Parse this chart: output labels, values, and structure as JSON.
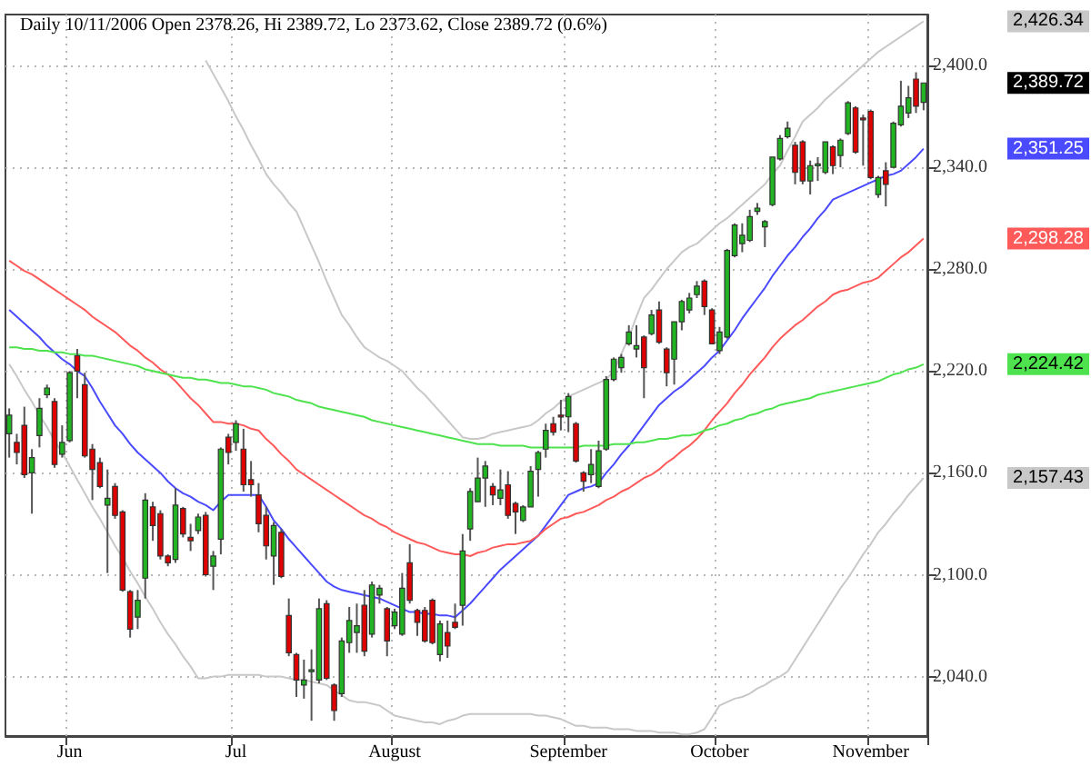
{
  "chart_data": {
    "type": "candlestick",
    "title": "Daily 10/11/2006 Open 2378.26, Hi 2389.72, Lo 2373.62, Close 2389.72 (0.6%)",
    "categories": [
      null,
      null,
      null,
      null,
      null,
      null,
      null,
      null,
      "Jun",
      null,
      null,
      null,
      null,
      null,
      null,
      null,
      null,
      null,
      null,
      null,
      null,
      null,
      null,
      null,
      null,
      null,
      null,
      null,
      null,
      null,
      "Jul",
      null,
      null,
      null,
      null,
      null,
      null,
      null,
      null,
      null,
      null,
      null,
      null,
      null,
      null,
      null,
      null,
      null,
      null,
      null,
      null,
      "August",
      null,
      null,
      null,
      null,
      null,
      null,
      null,
      null,
      null,
      null,
      null,
      null,
      null,
      null,
      null,
      null,
      null,
      null,
      null,
      null,
      null,
      null,
      "September",
      null,
      null,
      null,
      null,
      null,
      null,
      null,
      null,
      null,
      null,
      null,
      null,
      null,
      null,
      null,
      null,
      null,
      null,
      null,
      "October",
      null,
      null,
      null,
      null,
      null,
      null,
      null,
      null,
      null,
      null,
      null,
      null,
      null,
      null,
      null,
      null,
      null,
      null,
      null,
      "November",
      null,
      null,
      null,
      null,
      null,
      null,
      null
    ],
    "ohlc": [
      [
        2183,
        2198,
        2169,
        2194
      ],
      [
        2178,
        2183,
        2165,
        2172
      ],
      [
        2188,
        2199,
        2157,
        2159
      ],
      [
        2160,
        2174,
        2136,
        2169
      ],
      [
        2182,
        2204,
        2175,
        2198
      ],
      [
        2206,
        2212,
        2204,
        2210
      ],
      [
        2202,
        2204,
        2163,
        2165
      ],
      [
        2171,
        2188,
        2169,
        2178
      ],
      [
        2179,
        2220,
        2178,
        2219
      ],
      [
        2229,
        2233,
        2204,
        2220
      ],
      [
        2212,
        2219,
        2169,
        2170
      ],
      [
        2174,
        2177,
        2144,
        2162
      ],
      [
        2166,
        2169,
        2151,
        2152
      ],
      [
        2141,
        2162,
        2101,
        2145
      ],
      [
        2152,
        2154,
        2133,
        2135
      ],
      [
        2137,
        2138,
        2090,
        2091
      ],
      [
        2090,
        2091,
        2063,
        2068
      ],
      [
        2075,
        2091,
        2068,
        2085
      ],
      [
        2098,
        2148,
        2086,
        2144
      ],
      [
        2140,
        2143,
        2120,
        2129
      ],
      [
        2136,
        2138,
        2109,
        2111
      ],
      [
        2111,
        2112,
        2105,
        2107
      ],
      [
        2109,
        2151,
        2107,
        2141
      ],
      [
        2139,
        2140,
        2122,
        2124
      ],
      [
        2122,
        2130,
        2114,
        2120
      ],
      [
        2126,
        2136,
        2124,
        2134
      ],
      [
        2135,
        2137,
        2099,
        2100
      ],
      [
        2105,
        2114,
        2091,
        2111
      ],
      [
        2121,
        2175,
        2112,
        2174
      ],
      [
        2181,
        2183,
        2165,
        2172
      ],
      [
        2178,
        2191,
        2173,
        2189
      ],
      [
        2174,
        2186,
        2149,
        2153
      ],
      [
        2156,
        2167,
        2146,
        2153
      ],
      [
        2147,
        2154,
        2125,
        2130
      ],
      [
        2135,
        2140,
        2109,
        2117
      ],
      [
        2111,
        2131,
        2094,
        2129
      ],
      [
        2125,
        2127,
        2098,
        2099
      ],
      [
        2076,
        2086,
        2052,
        2054
      ],
      [
        2053,
        2054,
        2028,
        2038
      ],
      [
        2035,
        2050,
        2027,
        2038
      ],
      [
        2043,
        2056,
        2014,
        2044
      ],
      [
        2038,
        2086,
        2036,
        2080
      ],
      [
        2083,
        2085,
        2038,
        2039
      ],
      [
        2035,
        2036,
        2014,
        2020
      ],
      [
        2030,
        2063,
        2028,
        2061
      ],
      [
        2060,
        2081,
        2054,
        2073
      ],
      [
        2066,
        2083,
        2054,
        2070
      ],
      [
        2082,
        2091,
        2052,
        2055
      ],
      [
        2065,
        2096,
        2063,
        2094
      ],
      [
        2088,
        2094,
        2083,
        2092
      ],
      [
        2080,
        2081,
        2052,
        2061
      ],
      [
        2070,
        2080,
        2068,
        2078
      ],
      [
        2065,
        2101,
        2064,
        2092
      ],
      [
        2107,
        2118,
        2083,
        2085
      ],
      [
        2079,
        2080,
        2064,
        2072
      ],
      [
        2079,
        2081,
        2060,
        2061
      ],
      [
        2085,
        2086,
        2059,
        2060
      ],
      [
        2053,
        2073,
        2049,
        2071
      ],
      [
        2066,
        2073,
        2051,
        2058
      ],
      [
        2072,
        2083,
        2068,
        2069
      ],
      [
        2082,
        2124,
        2070,
        2114
      ],
      [
        2127,
        2151,
        2120,
        2149
      ],
      [
        2143,
        2169,
        2143,
        2157
      ],
      [
        2157,
        2167,
        2140,
        2164
      ],
      [
        2152,
        2154,
        2141,
        2147
      ],
      [
        2145,
        2162,
        2141,
        2150
      ],
      [
        2153,
        2161,
        2133,
        2135
      ],
      [
        2142,
        2143,
        2124,
        2137
      ],
      [
        2132,
        2141,
        2131,
        2140
      ],
      [
        2140,
        2164,
        2140,
        2161
      ],
      [
        2162,
        2173,
        2146,
        2172
      ],
      [
        2174,
        2189,
        2169,
        2185
      ],
      [
        2189,
        2193,
        2182,
        2184
      ],
      [
        2194,
        2203,
        2185,
        2193
      ],
      [
        2193,
        2207,
        2184,
        2205
      ],
      [
        2189,
        2190,
        2166,
        2167
      ],
      [
        2160,
        2161,
        2149,
        2155
      ],
      [
        2159,
        2174,
        2154,
        2165
      ],
      [
        2152,
        2179,
        2151,
        2173
      ],
      [
        2174,
        2217,
        2173,
        2215
      ],
      [
        2215,
        2228,
        2214,
        2227
      ],
      [
        2222,
        2230,
        2219,
        2228
      ],
      [
        2236,
        2247,
        2235,
        2243
      ],
      [
        2233,
        2247,
        2228,
        2235
      ],
      [
        2240,
        2241,
        2204,
        2222
      ],
      [
        2242,
        2256,
        2241,
        2253
      ],
      [
        2256,
        2261,
        2236,
        2237
      ],
      [
        2233,
        2234,
        2211,
        2219
      ],
      [
        2227,
        2249,
        2212,
        2249
      ],
      [
        2249,
        2262,
        2244,
        2261
      ],
      [
        2256,
        2266,
        2254,
        2263
      ],
      [
        2265,
        2273,
        2263,
        2270
      ],
      [
        2273,
        2274,
        2253,
        2258
      ],
      [
        2256,
        2257,
        2236,
        2236
      ],
      [
        2232,
        2246,
        2230,
        2243
      ],
      [
        2240,
        2292,
        2239,
        2291
      ],
      [
        2288,
        2307,
        2287,
        2306
      ],
      [
        2295,
        2307,
        2290,
        2300
      ],
      [
        2297,
        2315,
        2296,
        2311
      ],
      [
        2314,
        2319,
        2312,
        2316
      ],
      [
        2305,
        2309,
        2293,
        2308
      ],
      [
        2318,
        2346,
        2317,
        2346
      ],
      [
        2345,
        2359,
        2344,
        2357
      ],
      [
        2358,
        2367,
        2357,
        2363
      ],
      [
        2353,
        2355,
        2330,
        2337
      ],
      [
        2355,
        2356,
        2330,
        2332
      ],
      [
        2332,
        2344,
        2324,
        2341
      ],
      [
        2341,
        2346,
        2332,
        2342
      ],
      [
        2337,
        2355,
        2336,
        2355
      ],
      [
        2352,
        2353,
        2336,
        2341
      ],
      [
        2347,
        2357,
        2340,
        2356
      ],
      [
        2360,
        2379,
        2359,
        2378
      ],
      [
        2375,
        2376,
        2348,
        2349
      ],
      [
        2369,
        2371,
        2341,
        2368
      ],
      [
        2373,
        2374,
        2333,
        2334
      ],
      [
        2324,
        2335,
        2322,
        2334
      ],
      [
        2338,
        2343,
        2317,
        2330
      ],
      [
        2340,
        2367,
        2340,
        2366
      ],
      [
        2365,
        2391,
        2364,
        2376
      ],
      [
        2372,
        2388,
        2369,
        2381
      ],
      [
        2392,
        2396,
        2372,
        2376
      ],
      [
        2378.26,
        2389.72,
        2373.62,
        2389.72
      ]
    ],
    "colors": [
      "#22b422",
      "#e00000",
      "#e00000",
      "#22b422",
      "#22b422",
      "#22b422",
      "#e00000",
      "#22b422",
      "#22b422",
      "#e00000",
      "#e00000",
      "#e00000",
      "#e00000",
      "#22b422",
      "#e00000",
      "#e00000",
      "#e00000",
      "#22b422",
      "#22b422",
      "#e00000",
      "#e00000",
      "#e00000",
      "#22b422",
      "#e00000",
      "#e00000",
      "#22b422",
      "#e00000",
      "#22b422",
      "#22b422",
      "#e00000",
      "#22b422",
      "#e00000",
      "#e00000",
      "#e00000",
      "#e00000",
      "#22b422",
      "#e00000",
      "#e00000",
      "#e00000",
      "#22b422",
      "#22b422",
      "#22b422",
      "#e00000",
      "#e00000",
      "#22b422",
      "#22b422",
      "#22b422",
      "#e00000",
      "#22b422",
      "#22b422",
      "#e00000",
      "#22b422",
      "#22b422",
      "#e00000",
      "#e00000",
      "#e00000",
      "#e00000",
      "#22b422",
      "#e00000",
      "#e00000",
      "#22b422",
      "#22b422",
      "#22b422",
      "#22b422",
      "#e00000",
      "#22b422",
      "#e00000",
      "#e00000",
      "#22b422",
      "#22b422",
      "#22b422",
      "#22b422",
      "#e00000",
      "#e00000",
      "#22b422",
      "#e00000",
      "#e00000",
      "#22b422",
      "#22b422",
      "#22b422",
      "#22b422",
      "#22b422",
      "#22b422",
      "#22b422",
      "#e00000",
      "#22b422",
      "#e00000",
      "#e00000",
      "#22b422",
      "#22b422",
      "#22b422",
      "#22b422",
      "#e00000",
      "#e00000",
      "#22b422",
      "#22b422",
      "#22b422",
      "#22b422",
      "#22b422",
      "#22b422",
      "#22b422",
      "#22b422",
      "#22b422",
      "#22b422",
      "#e00000",
      "#e00000",
      "#22b422",
      "#22b422",
      "#22b422",
      "#e00000",
      "#22b422",
      "#22b422",
      "#e00000",
      "#e00000",
      "#e00000",
      "#22b422",
      "#e00000",
      "#22b422",
      "#22b422",
      "#22b422",
      "#e00000",
      "#22b422"
    ],
    "series": [
      {
        "type": "line",
        "color": "#c8c8c8",
        "values": [
          null,
          null,
          null,
          null,
          null,
          null,
          null,
          null,
          null,
          null,
          null,
          null,
          null,
          null,
          null,
          null,
          null,
          null,
          null,
          null,
          null,
          null,
          null,
          null,
          null,
          null,
          2403,
          2395,
          2387,
          2379,
          2370,
          2362,
          2353,
          2345,
          2336,
          2330,
          2325,
          2319,
          2314,
          2304,
          2294,
          2284,
          2273,
          2263,
          2253,
          2247,
          2240,
          2234,
          2231,
          2228,
          2226,
          2223,
          2220,
          2215,
          2210,
          2206,
          2201,
          2196,
          2191,
          2186,
          2181,
          2180,
          2180,
          2181,
          2183,
          2184,
          2185,
          2186,
          2187,
          2188,
          2191,
          2195,
          2198,
          2202,
          2205,
          2207,
          2209,
          2211,
          2213,
          2215,
          2220,
          2230,
          2240,
          2252,
          2263,
          2268,
          2274,
          2280,
          2285,
          2290,
          2293,
          2295,
          2299,
          2303,
          2307,
          2310,
          2314,
          2318,
          2322,
          2326,
          2330,
          2336,
          2341,
          2350,
          2358,
          2367,
          2371,
          2375,
          2380,
          2384,
          2388,
          2392,
          2396,
          2400,
          2404,
          2408,
          2411,
          2414,
          2417,
          2420,
          2423,
          2426
        ]
      },
      {
        "type": "line",
        "color": "#c8c8c8",
        "values": [
          2224,
          2217,
          2209,
          2202,
          2194,
          2187,
          2179,
          2172,
          2164,
          2156,
          2148,
          2140,
          2133,
          2125,
          2117,
          2110,
          2102,
          2095,
          2087,
          2080,
          2072,
          2065,
          2059,
          2052,
          2046,
          2039,
          2039,
          2040,
          2040,
          2041,
          2041,
          2041,
          2041,
          2041,
          2040,
          2040,
          2040,
          2039,
          2038,
          2038,
          2037,
          2036,
          2035,
          2032,
          2029,
          2026,
          2025,
          2025,
          2024,
          2023,
          2020,
          2017,
          2016,
          2015,
          2014,
          2013,
          2013,
          2012,
          2014,
          2015,
          2017,
          2018,
          2018,
          2018,
          2018,
          2018,
          2018,
          2018,
          2018,
          2018,
          2017,
          2017,
          2016,
          2015,
          2013,
          2011,
          2011,
          2010,
          2010,
          2010,
          2009,
          2009,
          2009,
          2008,
          2008,
          2008,
          2007,
          2007,
          2007,
          2006,
          2006,
          2007,
          2009,
          2016,
          2023,
          2025,
          2027,
          2028,
          2030,
          2033,
          2035,
          2038,
          2040,
          2043,
          2050,
          2057,
          2064,
          2071,
          2078,
          2085,
          2092,
          2098,
          2105,
          2112,
          2118,
          2125,
          2130,
          2136,
          2141,
          2147,
          2152,
          2157
        ]
      },
      {
        "type": "line",
        "color": "#4a4aff",
        "values": [
          2256,
          2252,
          2248,
          2244,
          2240,
          2235,
          2231,
          2227,
          2224,
          2220,
          2217,
          2210,
          2202,
          2195,
          2188,
          2183,
          2177,
          2172,
          2168,
          2164,
          2160,
          2155,
          2151,
          2148,
          2146,
          2143,
          2141,
          2138,
          2143,
          2147,
          2147,
          2147,
          2147,
          2147,
          2140,
          2132,
          2127,
          2121,
          2116,
          2111,
          2106,
          2101,
          2096,
          2093,
          2091,
          2090,
          2089,
          2088,
          2087,
          2086,
          2084,
          2082,
          2080,
          2078,
          2078,
          2077,
          2077,
          2076,
          2076,
          2075,
          2079,
          2083,
          2088,
          2093,
          2098,
          2103,
          2107,
          2111,
          2115,
          2119,
          2123,
          2129,
          2135,
          2141,
          2147,
          2149,
          2151,
          2152,
          2154,
          2160,
          2165,
          2171,
          2176,
          2182,
          2188,
          2194,
          2200,
          2204,
          2208,
          2211,
          2215,
          2219,
          2223,
          2228,
          2232,
          2238,
          2244,
          2251,
          2257,
          2263,
          2269,
          2276,
          2282,
          2288,
          2293,
          2299,
          2304,
          2310,
          2315,
          2321,
          2323,
          2325,
          2327,
          2329,
          2331,
          2333,
          2335,
          2336,
          2338,
          2342,
          2346,
          2351
        ]
      },
      {
        "type": "line",
        "color": "#ff5a5a",
        "values": [
          2285,
          2282,
          2279,
          2277,
          2274,
          2271,
          2268,
          2265,
          2262,
          2259,
          2256,
          2252,
          2249,
          2246,
          2243,
          2239,
          2235,
          2232,
          2228,
          2225,
          2221,
          2218,
          2214,
          2209,
          2204,
          2200,
          2195,
          2190,
          2190,
          2189,
          2189,
          2188,
          2186,
          2185,
          2180,
          2176,
          2171,
          2167,
          2162,
          2159,
          2156,
          2153,
          2150,
          2147,
          2144,
          2141,
          2138,
          2135,
          2133,
          2130,
          2128,
          2125,
          2123,
          2121,
          2119,
          2118,
          2116,
          2114,
          2113,
          2112,
          2112,
          2111,
          2113,
          2114,
          2116,
          2117,
          2118,
          2118,
          2119,
          2120,
          2123,
          2127,
          2130,
          2133,
          2134,
          2136,
          2137,
          2139,
          2141,
          2144,
          2146,
          2149,
          2151,
          2154,
          2157,
          2159,
          2162,
          2166,
          2169,
          2173,
          2176,
          2180,
          2185,
          2191,
          2196,
          2201,
          2207,
          2212,
          2218,
          2223,
          2228,
          2234,
          2239,
          2243,
          2247,
          2250,
          2254,
          2258,
          2261,
          2265,
          2267,
          2268,
          2270,
          2272,
          2273,
          2275,
          2279,
          2283,
          2287,
          2290,
          2294,
          2298
        ]
      },
      {
        "type": "line",
        "color": "#4ee34e",
        "values": [
          2234,
          2234,
          2233,
          2233,
          2232,
          2232,
          2231,
          2231,
          2230,
          2230,
          2229,
          2229,
          2228,
          2227,
          2226,
          2225,
          2224,
          2223,
          2221,
          2220,
          2219,
          2218,
          2217,
          2216,
          2216,
          2215,
          2215,
          2214,
          2213,
          2213,
          2212,
          2211,
          2211,
          2210,
          2209,
          2207,
          2206,
          2205,
          2203,
          2202,
          2201,
          2199,
          2198,
          2197,
          2196,
          2195,
          2194,
          2193,
          2191,
          2190,
          2189,
          2188,
          2187,
          2186,
          2185,
          2184,
          2183,
          2182,
          2181,
          2180,
          2179,
          2178,
          2177,
          2177,
          2177,
          2176,
          2176,
          2176,
          2176,
          2175,
          2175,
          2175,
          2175,
          2175,
          2175,
          2175,
          2176,
          2176,
          2176,
          2176,
          2177,
          2177,
          2177,
          2178,
          2178,
          2179,
          2180,
          2180,
          2181,
          2182,
          2182,
          2183,
          2185,
          2186,
          2188,
          2189,
          2191,
          2192,
          2194,
          2195,
          2197,
          2198,
          2200,
          2201,
          2202,
          2203,
          2204,
          2206,
          2207,
          2208,
          2209,
          2210,
          2211,
          2212,
          2213,
          2214,
          2216,
          2218,
          2219,
          2221,
          2222,
          2224
        ]
      }
    ],
    "ylim": [
      2005,
      2430
    ],
    "yticks": [
      {
        "value": 2040,
        "label": "2,040.0"
      },
      {
        "value": 2100,
        "label": "2,100.0"
      },
      {
        "value": 2160,
        "label": "2,160.0"
      },
      {
        "value": 2220,
        "label": "2,220.0"
      },
      {
        "value": 2280,
        "label": "2,280.0"
      },
      {
        "value": 2340,
        "label": "2,340.0"
      },
      {
        "value": 2400,
        "label": "2,400.0"
      }
    ],
    "grid": true,
    "marker": "none",
    "annotations": [
      "2,426.34",
      "2,389.72",
      "2,351.25",
      "2,298.28",
      "2,224.42",
      "2,157.43"
    ]
  }
}
